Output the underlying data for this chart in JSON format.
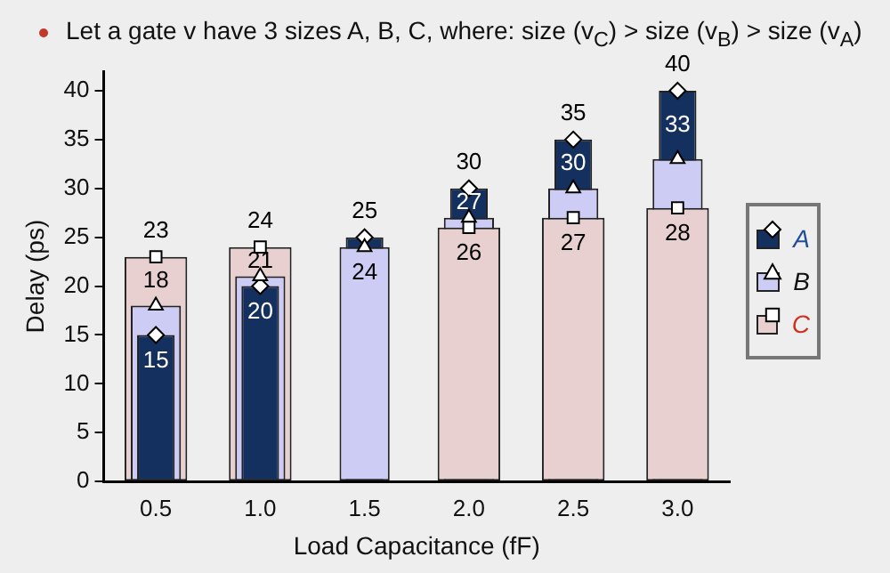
{
  "chart_data": {
    "type": "bar",
    "title": "Let a gate v have 3 sizes A, B, C, where:  size (v$_{C}$) > size (v$_{B}$) > size (v$_{A}$)",
    "xlabel": "Load Capacitance (fF)",
    "ylabel": "Delay (ps)",
    "categories": [
      "0.5",
      "1.0",
      "1.5",
      "2.0",
      "2.5",
      "3.0"
    ],
    "series": [
      {
        "name": "A",
        "color": "#14305f",
        "values": [
          15,
          20,
          25,
          30,
          35,
          40
        ],
        "value_labels": [
          "15",
          "20",
          "25",
          "30",
          "35",
          "40"
        ]
      },
      {
        "name": "B",
        "color": "#ccccf5",
        "values": [
          18,
          21,
          24,
          27,
          30,
          33
        ],
        "value_labels": [
          "18",
          "21",
          "24",
          "27",
          "30",
          "33"
        ]
      },
      {
        "name": "C",
        "color": "#e8d0d0",
        "values": [
          23,
          24,
          null,
          26,
          27,
          28
        ],
        "value_labels": [
          "23",
          "24",
          null,
          "26",
          "27",
          "28"
        ]
      },
      {
        "type": "scatter",
        "color": "#ffffff",
        "marker": "diamond",
        "x": [
          "0.5",
          "1.0",
          "1.5",
          "2.0",
          "2.5",
          "3.0"
        ],
        "values": [
          15,
          20,
          25,
          30,
          35,
          40
        ]
      },
      {
        "type": "scatter",
        "color": "#ffffff",
        "marker": "triangle",
        "x": [
          "0.5",
          "1.0",
          "1.5",
          "2.0",
          "2.5",
          "3.0"
        ],
        "values": [
          18,
          21,
          24,
          27,
          30,
          33
        ]
      },
      {
        "type": "scatter",
        "color": "#ffffff",
        "marker": "square",
        "x": [
          "0.5",
          "1.0",
          "1.5",
          "2.0",
          "2.5",
          "3.0"
        ],
        "values": [
          23,
          24,
          null,
          26,
          27,
          28
        ]
      }
    ],
    "ylim": [
      0,
      42
    ],
    "yticks": [
      0,
      5,
      10,
      15,
      20,
      25,
      30,
      35,
      40
    ],
    "grid": false,
    "legend": "right"
  }
}
